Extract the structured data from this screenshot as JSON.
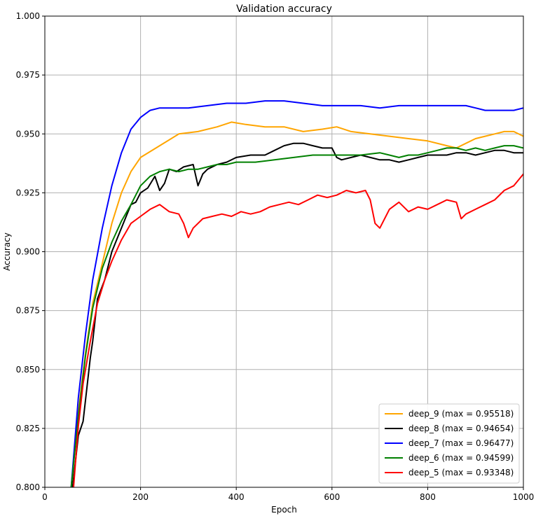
{
  "chart_data": {
    "type": "line",
    "title": "Validation accuracy",
    "xlabel": "Epoch",
    "ylabel": "Accuracy",
    "xlim": [
      0,
      1000
    ],
    "ylim": [
      0.8,
      1.0
    ],
    "x_ticks": [
      0,
      200,
      400,
      600,
      800,
      1000
    ],
    "x_tick_labels": [
      "0",
      "200",
      "400",
      "600",
      "800",
      "1000"
    ],
    "y_ticks": [
      0.8,
      0.825,
      0.85,
      0.875,
      0.9,
      0.925,
      0.95,
      0.975,
      1.0
    ],
    "y_tick_labels": [
      "0.800",
      "0.825",
      "0.850",
      "0.875",
      "0.900",
      "0.925",
      "0.950",
      "0.975",
      "1.000"
    ],
    "grid": true,
    "legend_position": "bottom-right",
    "series": [
      {
        "name": "deep_9 (max = 0.95518)",
        "color": "#ffa500",
        "x": [
          55,
          70,
          85,
          100,
          120,
          140,
          160,
          180,
          200,
          240,
          280,
          320,
          360,
          390,
          420,
          460,
          500,
          540,
          580,
          610,
          640,
          680,
          720,
          760,
          800,
          840,
          860,
          880,
          900,
          920,
          940,
          960,
          980,
          1000
        ],
        "y": [
          0.8,
          0.832,
          0.857,
          0.878,
          0.895,
          0.912,
          0.925,
          0.934,
          0.94,
          0.945,
          0.95,
          0.951,
          0.953,
          0.955,
          0.954,
          0.953,
          0.953,
          0.951,
          0.952,
          0.953,
          0.951,
          0.95,
          0.949,
          0.948,
          0.947,
          0.945,
          0.944,
          0.946,
          0.948,
          0.949,
          0.95,
          0.951,
          0.951,
          0.949
        ]
      },
      {
        "name": "deep_8 (max = 0.94654)",
        "color": "#000000",
        "x": [
          58,
          70,
          80,
          95,
          100,
          110,
          125,
          140,
          160,
          180,
          190,
          200,
          215,
          230,
          240,
          250,
          260,
          275,
          290,
          310,
          320,
          330,
          340,
          360,
          380,
          400,
          430,
          460,
          480,
          500,
          520,
          540,
          560,
          580,
          600,
          610,
          620,
          640,
          660,
          680,
          700,
          720,
          740,
          760,
          780,
          800,
          820,
          840,
          860,
          880,
          900,
          920,
          940,
          960,
          980,
          1000
        ],
        "y": [
          0.8,
          0.822,
          0.828,
          0.855,
          0.862,
          0.88,
          0.888,
          0.9,
          0.91,
          0.92,
          0.921,
          0.925,
          0.927,
          0.932,
          0.926,
          0.929,
          0.935,
          0.934,
          0.936,
          0.937,
          0.928,
          0.933,
          0.935,
          0.937,
          0.938,
          0.94,
          0.941,
          0.941,
          0.943,
          0.945,
          0.946,
          0.946,
          0.945,
          0.944,
          0.944,
          0.94,
          0.939,
          0.94,
          0.941,
          0.94,
          0.939,
          0.939,
          0.938,
          0.939,
          0.94,
          0.941,
          0.941,
          0.941,
          0.942,
          0.942,
          0.941,
          0.942,
          0.943,
          0.943,
          0.942,
          0.942
        ]
      },
      {
        "name": "deep_7 (max = 0.96477)",
        "color": "#0000ff",
        "x": [
          55,
          70,
          85,
          100,
          120,
          140,
          160,
          180,
          200,
          220,
          240,
          260,
          280,
          300,
          340,
          380,
          420,
          460,
          500,
          540,
          580,
          620,
          660,
          700,
          740,
          780,
          820,
          860,
          880,
          900,
          920,
          940,
          960,
          980,
          1000
        ],
        "y": [
          0.8,
          0.838,
          0.865,
          0.888,
          0.91,
          0.928,
          0.942,
          0.952,
          0.957,
          0.96,
          0.961,
          0.961,
          0.961,
          0.961,
          0.962,
          0.963,
          0.963,
          0.964,
          0.964,
          0.963,
          0.962,
          0.962,
          0.962,
          0.961,
          0.962,
          0.962,
          0.962,
          0.962,
          0.962,
          0.961,
          0.96,
          0.96,
          0.96,
          0.96,
          0.961
        ]
      },
      {
        "name": "deep_6 (max = 0.94599)",
        "color": "#008000",
        "x": [
          55,
          70,
          85,
          100,
          120,
          140,
          160,
          180,
          200,
          220,
          240,
          260,
          280,
          300,
          320,
          340,
          360,
          380,
          400,
          440,
          480,
          520,
          560,
          600,
          620,
          660,
          700,
          720,
          740,
          760,
          780,
          800,
          820,
          840,
          860,
          880,
          900,
          920,
          940,
          960,
          980,
          1000
        ],
        "y": [
          0.8,
          0.83,
          0.856,
          0.876,
          0.893,
          0.904,
          0.913,
          0.92,
          0.928,
          0.932,
          0.934,
          0.935,
          0.934,
          0.935,
          0.935,
          0.936,
          0.937,
          0.937,
          0.938,
          0.938,
          0.939,
          0.94,
          0.941,
          0.941,
          0.941,
          0.941,
          0.942,
          0.941,
          0.94,
          0.941,
          0.941,
          0.942,
          0.943,
          0.944,
          0.944,
          0.943,
          0.944,
          0.943,
          0.944,
          0.945,
          0.945,
          0.944
        ]
      },
      {
        "name": "deep_5 (max = 0.93348)",
        "color": "#ff0000",
        "x": [
          60,
          70,
          80,
          95,
          110,
          125,
          140,
          160,
          180,
          200,
          220,
          240,
          260,
          280,
          290,
          300,
          310,
          330,
          350,
          370,
          390,
          410,
          430,
          450,
          470,
          490,
          510,
          530,
          550,
          570,
          590,
          610,
          630,
          650,
          670,
          680,
          690,
          700,
          720,
          740,
          760,
          780,
          800,
          820,
          840,
          860,
          870,
          880,
          900,
          920,
          940,
          960,
          980,
          1000
        ],
        "y": [
          0.8,
          0.826,
          0.844,
          0.862,
          0.878,
          0.888,
          0.896,
          0.905,
          0.912,
          0.915,
          0.918,
          0.92,
          0.917,
          0.916,
          0.912,
          0.906,
          0.91,
          0.914,
          0.915,
          0.916,
          0.915,
          0.917,
          0.916,
          0.917,
          0.919,
          0.92,
          0.921,
          0.92,
          0.922,
          0.924,
          0.923,
          0.924,
          0.926,
          0.925,
          0.926,
          0.922,
          0.912,
          0.91,
          0.918,
          0.921,
          0.917,
          0.919,
          0.918,
          0.92,
          0.922,
          0.921,
          0.914,
          0.916,
          0.918,
          0.92,
          0.922,
          0.926,
          0.928,
          0.933
        ]
      }
    ]
  }
}
